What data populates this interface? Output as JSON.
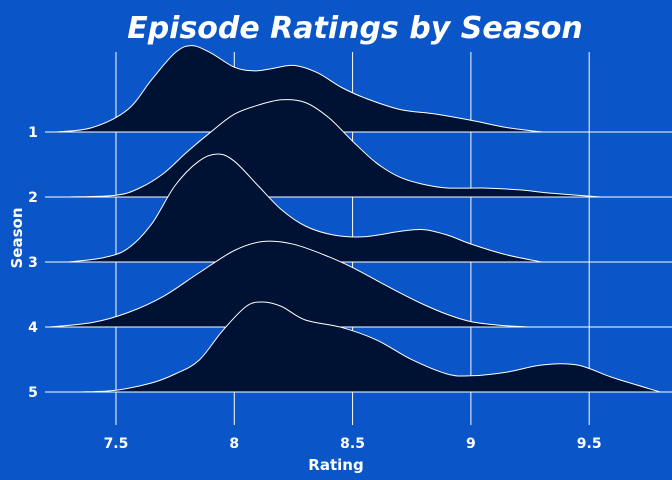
{
  "chart_data": {
    "type": "ridgeline",
    "title": "Episode Ratings by Season",
    "xlabel": "Rating",
    "ylabel": "Season",
    "xlim": [
      7.2,
      9.85
    ],
    "x_ticks": [
      "7.5",
      "8",
      "8.5",
      "9",
      "9.5"
    ],
    "grid": true,
    "colors": {
      "background": "#0a55c8",
      "fill": "#001233",
      "line": "#ffffff"
    },
    "series": [
      {
        "name": "1",
        "x": [
          7.25,
          7.4,
          7.55,
          7.65,
          7.75,
          7.82,
          7.9,
          8.0,
          8.08,
          8.15,
          8.25,
          8.35,
          8.45,
          8.55,
          8.7,
          8.85,
          9.0,
          9.15,
          9.3
        ],
        "density": [
          0.0,
          0.05,
          0.25,
          0.58,
          0.88,
          0.96,
          0.88,
          0.72,
          0.68,
          0.7,
          0.74,
          0.66,
          0.5,
          0.38,
          0.25,
          0.2,
          0.13,
          0.05,
          0.0
        ]
      },
      {
        "name": "2",
        "x": [
          7.3,
          7.5,
          7.6,
          7.7,
          7.8,
          7.9,
          8.0,
          8.1,
          8.2,
          8.3,
          8.4,
          8.5,
          8.6,
          8.7,
          8.8,
          8.9,
          9.05,
          9.2,
          9.35,
          9.55
        ],
        "density": [
          0.0,
          0.02,
          0.1,
          0.26,
          0.5,
          0.72,
          0.92,
          1.02,
          1.08,
          1.05,
          0.88,
          0.62,
          0.38,
          0.22,
          0.14,
          0.1,
          0.1,
          0.08,
          0.04,
          0.0
        ]
      },
      {
        "name": "3",
        "x": [
          7.3,
          7.45,
          7.55,
          7.65,
          7.75,
          7.85,
          7.93,
          8.0,
          8.1,
          8.2,
          8.3,
          8.42,
          8.55,
          8.7,
          8.8,
          8.9,
          9.0,
          9.15,
          9.3
        ],
        "density": [
          0.0,
          0.05,
          0.15,
          0.42,
          0.85,
          1.12,
          1.2,
          1.12,
          0.85,
          0.58,
          0.4,
          0.3,
          0.28,
          0.34,
          0.36,
          0.3,
          0.2,
          0.08,
          0.0
        ]
      },
      {
        "name": "4",
        "x": [
          7.22,
          7.4,
          7.55,
          7.7,
          7.85,
          8.0,
          8.12,
          8.25,
          8.4,
          8.5,
          8.6,
          8.7,
          8.8,
          8.9,
          9.0,
          9.12,
          9.25
        ],
        "density": [
          0.0,
          0.05,
          0.16,
          0.34,
          0.6,
          0.85,
          0.95,
          0.92,
          0.78,
          0.66,
          0.52,
          0.38,
          0.25,
          0.14,
          0.06,
          0.02,
          0.0
        ]
      },
      {
        "name": "5",
        "x": [
          7.35,
          7.5,
          7.65,
          7.75,
          7.85,
          7.95,
          8.05,
          8.12,
          8.2,
          8.3,
          8.45,
          8.6,
          8.75,
          8.9,
          9.0,
          9.15,
          9.3,
          9.45,
          9.6,
          9.8
        ],
        "density": [
          0.0,
          0.02,
          0.1,
          0.2,
          0.35,
          0.68,
          0.95,
          1.0,
          0.95,
          0.8,
          0.72,
          0.58,
          0.36,
          0.2,
          0.18,
          0.22,
          0.3,
          0.3,
          0.16,
          0.0
        ]
      }
    ]
  }
}
